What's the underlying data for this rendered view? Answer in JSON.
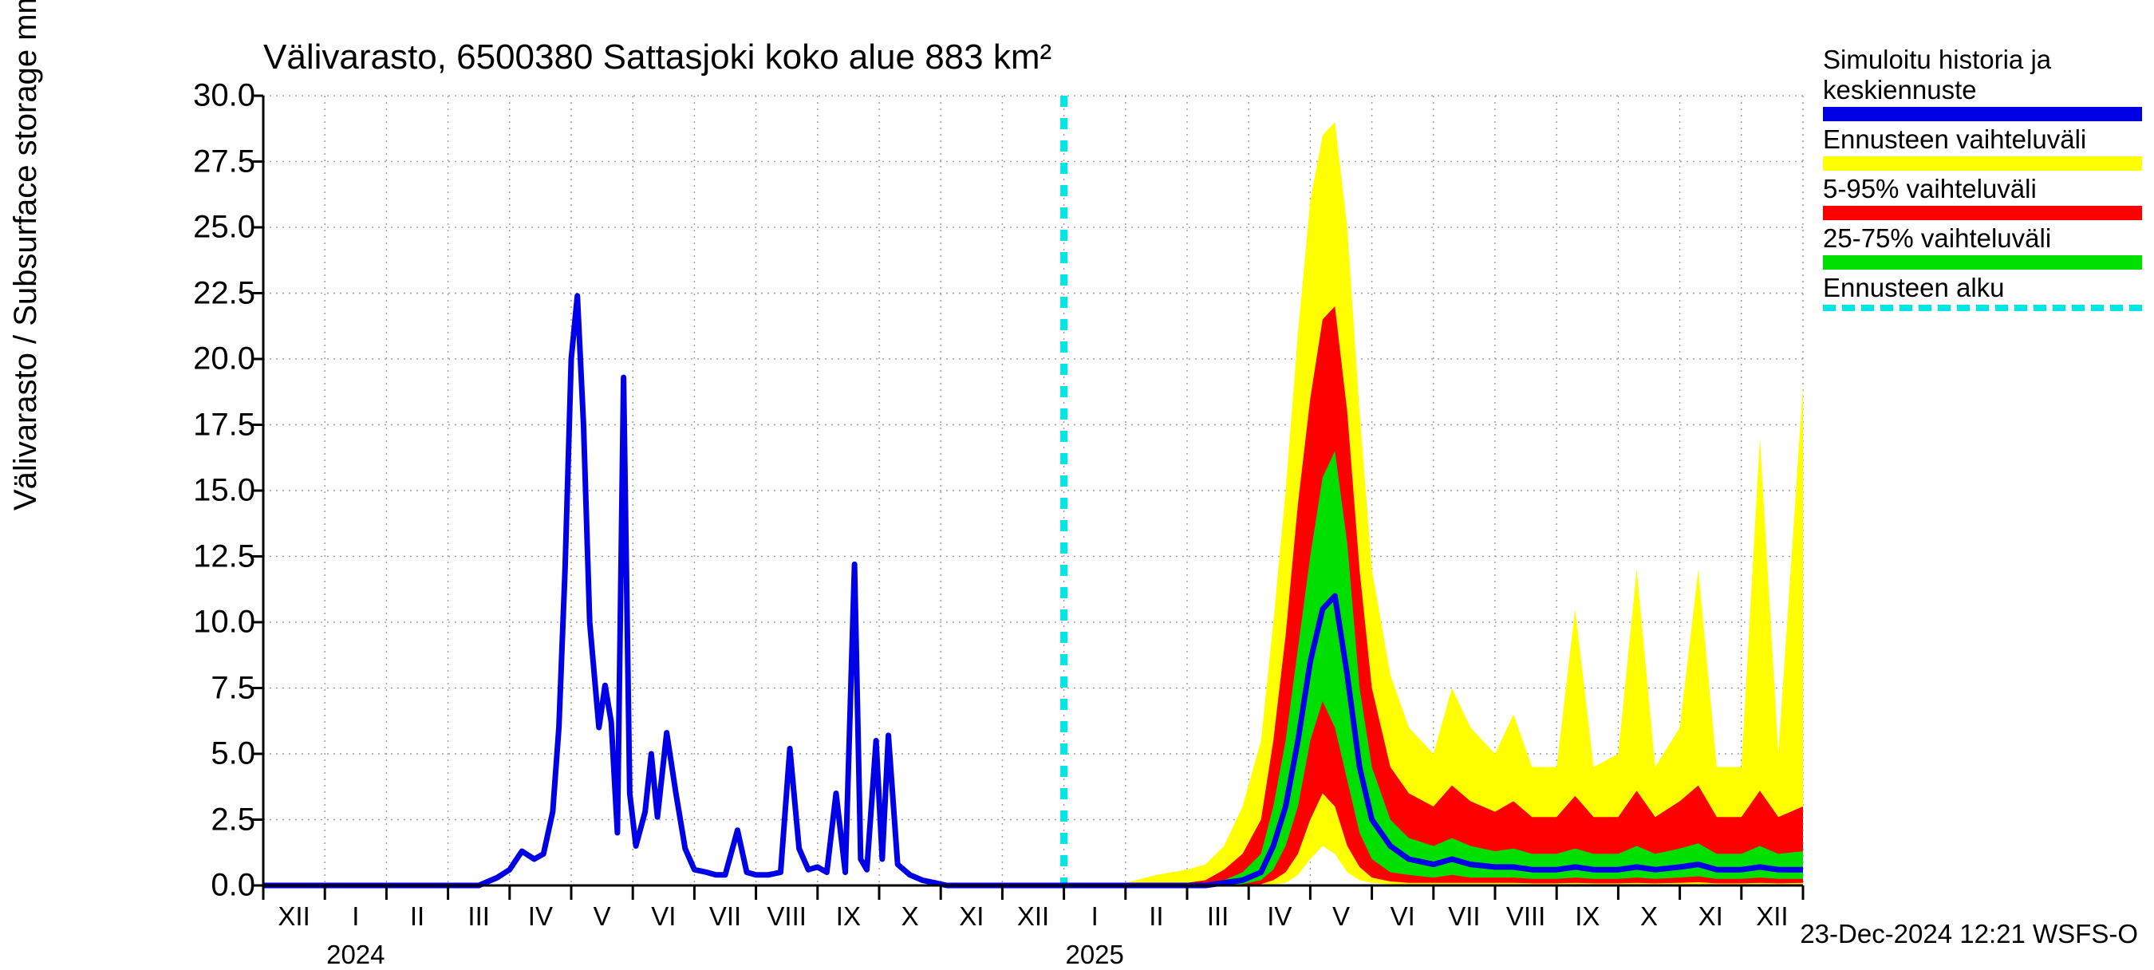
{
  "meta": {
    "title": "Välivarasto, 6500380 Sattasjoki koko alue 883 km²",
    "ylabel": "Välivarasto / Subsurface storage  mm",
    "timestamp": "23-Dec-2024 12:21 WSFS-O",
    "type": "line with uncertainty bands (fan chart)"
  },
  "colors": {
    "history_line": "#0000e6",
    "band_outer": "#ffff00",
    "band_mid": "#ff0000",
    "band_inner": "#00e000",
    "forecast_start": "#00e5e5",
    "axis": "#000000",
    "grid": "#a0a0a0",
    "background": "#ffffff",
    "text": "#000000"
  },
  "style": {
    "title_fontsize": 44,
    "axis_label_fontsize": 40,
    "tick_fontsize": 40,
    "legend_fontsize": 33,
    "line_width_history": 7,
    "grid_dash": "2 6",
    "forecast_dash": "14 14",
    "forecast_width": 9
  },
  "axes": {
    "ylim": [
      0.0,
      30.0
    ],
    "ytick_step": 2.5,
    "yticks": [
      "0.0",
      "2.5",
      "5.0",
      "7.5",
      "10.0",
      "12.5",
      "15.0",
      "17.5",
      "20.0",
      "22.5",
      "25.0",
      "27.5",
      "30.0"
    ],
    "x_months": [
      "XII",
      "I",
      "II",
      "III",
      "IV",
      "V",
      "VI",
      "VII",
      "VIII",
      "IX",
      "X",
      "XI",
      "XII",
      "I",
      "II",
      "III",
      "IV",
      "V",
      "VI",
      "VII",
      "VIII",
      "IX",
      "X",
      "XI",
      "XII"
    ],
    "x_month_centers": [
      0.5,
      1.5,
      2.5,
      3.5,
      4.5,
      5.5,
      6.5,
      7.5,
      8.5,
      9.5,
      10.5,
      11.5,
      12.5,
      13.5,
      14.5,
      15.5,
      16.5,
      17.5,
      18.5,
      19.5,
      20.5,
      21.5,
      22.5,
      23.5,
      24.5
    ],
    "x_range": [
      0,
      25
    ],
    "year_labels": [
      {
        "label": "2024",
        "x": 1.5
      },
      {
        "label": "2025",
        "x": 13.5
      }
    ],
    "x_gridlines": [
      0,
      1,
      2,
      3,
      4,
      5,
      6,
      7,
      8,
      9,
      10,
      11,
      12,
      13,
      14,
      15,
      16,
      17,
      18,
      19,
      20,
      21,
      22,
      23,
      24,
      25
    ]
  },
  "forecast_start_x": 13.0,
  "legend": [
    {
      "label": "Simuloitu historia ja keskiennuste",
      "color": "#0000e6",
      "kind": "line"
    },
    {
      "label": "Ennusteen vaihteluväli",
      "color": "#ffff00",
      "kind": "band"
    },
    {
      "label": "5-95% vaihteluväli",
      "color": "#ff0000",
      "kind": "band"
    },
    {
      "label": "25-75% vaihteluväli",
      "color": "#00e000",
      "kind": "band"
    },
    {
      "label": "Ennusteen alku",
      "color": "#00e5e5",
      "kind": "dashed"
    }
  ],
  "series": {
    "history_x": [
      0,
      0.5,
      1,
      1.5,
      2,
      2.5,
      3,
      3.5,
      3.8,
      4.0,
      4.2,
      4.4,
      4.55,
      4.7,
      4.8,
      4.9,
      5.0,
      5.1,
      5.2,
      5.3,
      5.45,
      5.55,
      5.65,
      5.75,
      5.85,
      5.95,
      6.05,
      6.2,
      6.3,
      6.4,
      6.55,
      6.7,
      6.85,
      7.0,
      7.2,
      7.35,
      7.5,
      7.7,
      7.85,
      8.0,
      8.2,
      8.4,
      8.55,
      8.7,
      8.85,
      9.0,
      9.15,
      9.3,
      9.45,
      9.6,
      9.7,
      9.8,
      9.95,
      10.05,
      10.15,
      10.3,
      10.5,
      10.7,
      10.9,
      11.1,
      11.4,
      11.7,
      12.0,
      12.3,
      12.6,
      12.9,
      13.0
    ],
    "history_y": [
      0,
      0,
      0,
      0,
      0,
      0,
      0,
      0,
      0.3,
      0.6,
      1.3,
      1.0,
      1.2,
      2.8,
      6.0,
      12.0,
      20.0,
      22.4,
      17.5,
      10.0,
      6.0,
      7.6,
      6.2,
      2.0,
      19.3,
      3.5,
      1.5,
      2.8,
      5.0,
      2.6,
      5.8,
      3.5,
      1.4,
      0.6,
      0.5,
      0.4,
      0.4,
      2.1,
      0.5,
      0.4,
      0.4,
      0.5,
      5.2,
      1.4,
      0.6,
      0.7,
      0.5,
      3.5,
      0.5,
      12.2,
      1.0,
      0.6,
      5.5,
      1.0,
      5.7,
      0.8,
      0.4,
      0.2,
      0.1,
      0,
      0,
      0,
      0,
      0,
      0,
      0,
      0
    ],
    "forecast_x": [
      13.0,
      13.5,
      14.0,
      14.5,
      15.0,
      15.3,
      15.6,
      15.9,
      16.2,
      16.4,
      16.6,
      16.8,
      17.0,
      17.2,
      17.4,
      17.6,
      17.8,
      18.0,
      18.3,
      18.6,
      19.0,
      19.3,
      19.6,
      20.0,
      20.3,
      20.6,
      21.0,
      21.3,
      21.6,
      22.0,
      22.3,
      22.6,
      23.0,
      23.3,
      23.6,
      24.0,
      24.3,
      24.6,
      25.0
    ],
    "mean_y": [
      0,
      0,
      0,
      0,
      0,
      0,
      0.1,
      0.2,
      0.5,
      1.5,
      3.0,
      5.5,
      8.5,
      10.5,
      11.0,
      8.0,
      4.5,
      2.5,
      1.5,
      1.0,
      0.8,
      1.0,
      0.8,
      0.7,
      0.7,
      0.6,
      0.6,
      0.7,
      0.6,
      0.6,
      0.7,
      0.6,
      0.7,
      0.8,
      0.6,
      0.6,
      0.7,
      0.6,
      0.6
    ],
    "p25_y": [
      0,
      0,
      0,
      0,
      0,
      0,
      0,
      0.05,
      0.2,
      0.6,
      1.5,
      3.0,
      5.5,
      7.0,
      6.0,
      4.0,
      2.0,
      1.0,
      0.5,
      0.4,
      0.3,
      0.4,
      0.3,
      0.3,
      0.3,
      0.25,
      0.25,
      0.3,
      0.25,
      0.25,
      0.3,
      0.25,
      0.3,
      0.35,
      0.25,
      0.25,
      0.3,
      0.25,
      0.25
    ],
    "p75_y": [
      0,
      0,
      0,
      0,
      0,
      0,
      0.2,
      0.5,
      1.2,
      3.0,
      5.5,
      9.0,
      12.5,
      15.5,
      16.5,
      13.0,
      7.5,
      4.5,
      2.5,
      1.8,
      1.5,
      1.8,
      1.5,
      1.3,
      1.4,
      1.2,
      1.2,
      1.4,
      1.2,
      1.2,
      1.5,
      1.2,
      1.4,
      1.6,
      1.2,
      1.2,
      1.5,
      1.2,
      1.3
    ],
    "p5_y": [
      0,
      0,
      0,
      0,
      0,
      0,
      0,
      0,
      0.05,
      0.2,
      0.5,
      1.2,
      2.5,
      3.5,
      3.0,
      1.5,
      0.7,
      0.3,
      0.15,
      0.1,
      0.1,
      0.1,
      0.1,
      0.1,
      0.1,
      0.08,
      0.08,
      0.1,
      0.08,
      0.08,
      0.1,
      0.08,
      0.1,
      0.12,
      0.08,
      0.08,
      0.1,
      0.08,
      0.1
    ],
    "p95_y": [
      0,
      0,
      0,
      0.05,
      0.1,
      0.2,
      0.6,
      1.2,
      2.5,
      5.5,
      9.5,
      14.5,
      18.5,
      21.5,
      22.0,
      18.0,
      12.0,
      7.5,
      4.5,
      3.5,
      3.0,
      3.8,
      3.2,
      2.8,
      3.2,
      2.6,
      2.6,
      3.4,
      2.6,
      2.6,
      3.6,
      2.6,
      3.2,
      3.8,
      2.6,
      2.6,
      3.6,
      2.6,
      3.0
    ],
    "min_y": [
      0,
      0,
      0,
      0,
      0,
      0,
      0,
      0,
      0,
      0.05,
      0.1,
      0.4,
      1.0,
      1.5,
      1.2,
      0.5,
      0.2,
      0.1,
      0.05,
      0.03,
      0.03,
      0.03,
      0.03,
      0.02,
      0.02,
      0.02,
      0.02,
      0.02,
      0.02,
      0.02,
      0.02,
      0.02,
      0.02,
      0.03,
      0.02,
      0.02,
      0.02,
      0.02,
      0.02
    ],
    "max_y": [
      0,
      0,
      0.1,
      0.4,
      0.6,
      0.8,
      1.5,
      3.0,
      5.5,
      10.0,
      15.0,
      21.0,
      26.0,
      28.5,
      29.0,
      25.0,
      18.0,
      12.0,
      8.0,
      6.0,
      5.0,
      7.5,
      6.0,
      5.0,
      6.5,
      4.5,
      4.5,
      10.5,
      4.5,
      5.0,
      12.0,
      4.5,
      6.0,
      12.0,
      4.5,
      4.5,
      17.0,
      5.0,
      19.0
    ]
  }
}
